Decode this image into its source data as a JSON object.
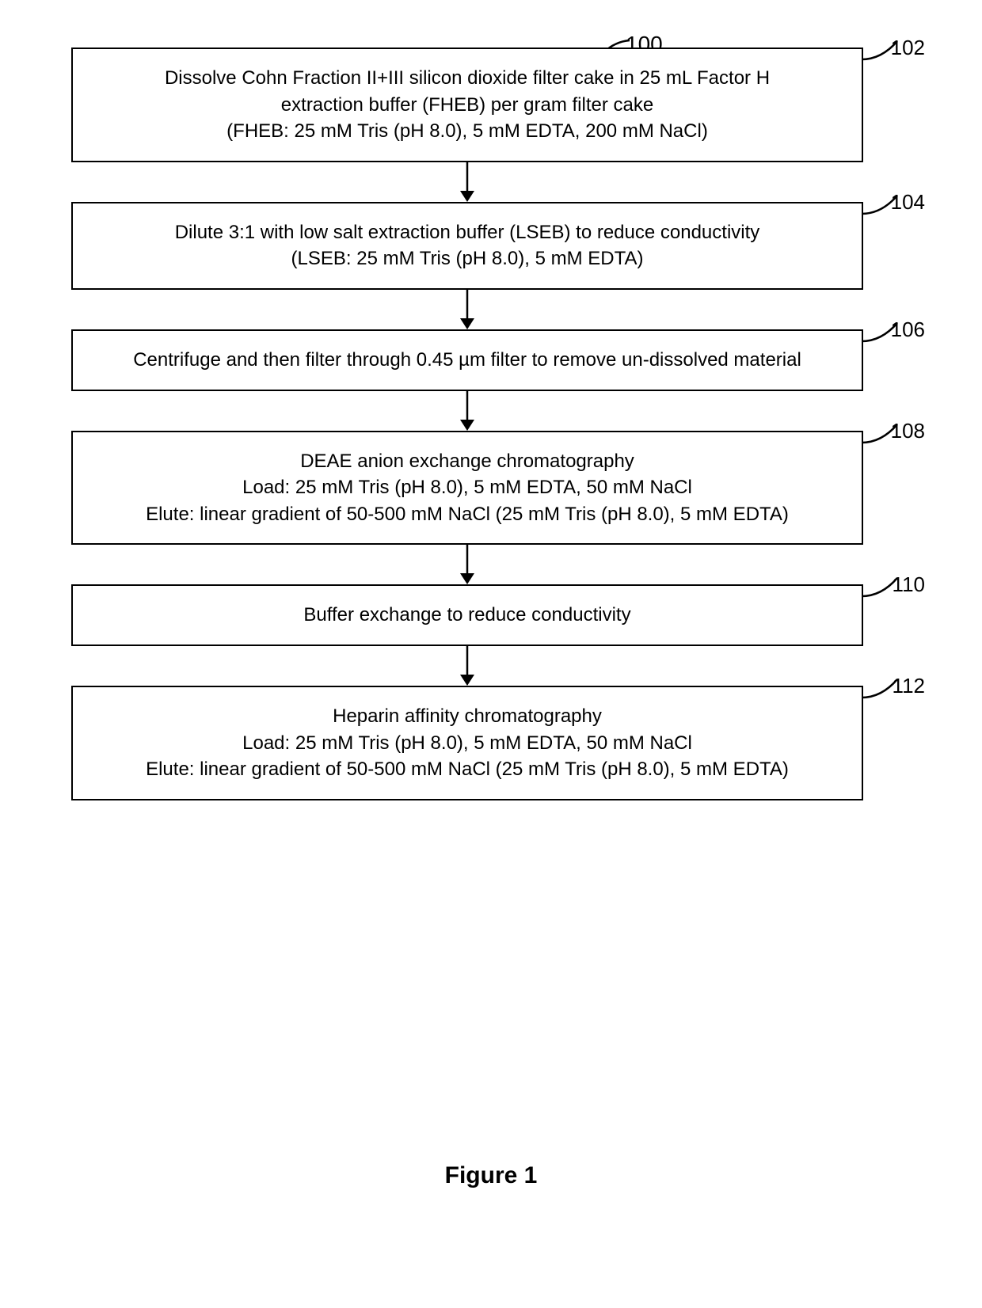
{
  "figure": {
    "top_label": "100",
    "caption": "Figure 1",
    "box_border_color": "#000000",
    "background_color": "#ffffff",
    "text_color": "#000000",
    "line_width": 2,
    "font_family": "Arial",
    "body_fontsize": 24,
    "label_fontsize": 26,
    "caption_fontsize": 30
  },
  "steps": [
    {
      "label": "102",
      "lines": [
        "Dissolve Cohn Fraction II+III silicon dioxide filter cake in 25 mL Factor H",
        "extraction buffer (FHEB) per gram filter cake",
        "(FHEB: 25 mM Tris (pH 8.0), 5 mM EDTA, 200 mM NaCl)"
      ]
    },
    {
      "label": "104",
      "lines": [
        "Dilute 3:1 with low salt extraction buffer (LSEB) to reduce conductivity",
        "(LSEB: 25 mM Tris (pH 8.0), 5 mM EDTA)"
      ]
    },
    {
      "label": "106",
      "lines": [
        "Centrifuge and then filter through 0.45 µm filter to remove un-dissolved material"
      ]
    },
    {
      "label": "108",
      "lines": [
        "DEAE anion exchange chromatography",
        "Load: 25 mM Tris (pH 8.0), 5 mM EDTA, 50 mM NaCl",
        "Elute: linear gradient of 50-500 mM NaCl (25 mM Tris (pH 8.0), 5 mM EDTA)"
      ]
    },
    {
      "label": "110",
      "lines": [
        "Buffer exchange to reduce conductivity"
      ]
    },
    {
      "label": "112",
      "lines": [
        "Heparin affinity chromatography",
        "Load: 25 mM Tris (pH 8.0), 5 mM EDTA, 50 mM NaCl",
        "Elute: linear gradient of 50-500 mM NaCl (25 mM Tris (pH 8.0), 5 mM EDTA)"
      ]
    }
  ]
}
